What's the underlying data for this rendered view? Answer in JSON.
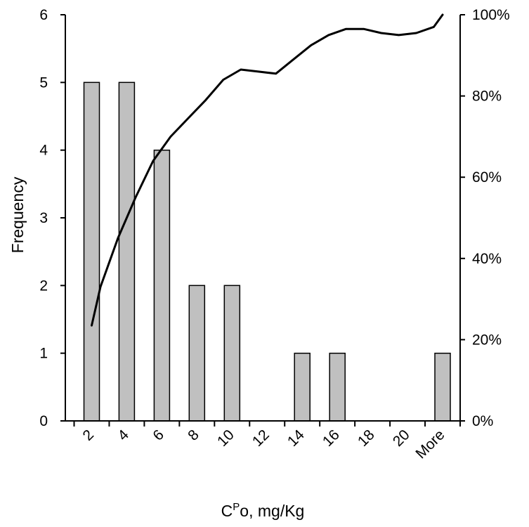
{
  "chart_data": {
    "type": "bar",
    "title": "",
    "xlabel": {
      "base": "C",
      "sup": "P",
      "rest": "o, mg/Kg"
    },
    "ylabel": "Frequency",
    "y2label": "",
    "categories": [
      "2",
      "4",
      "6",
      "8",
      "10",
      "12",
      "14",
      "16",
      "18",
      "20",
      "More"
    ],
    "y_ticks": [
      "0",
      "1",
      "2",
      "3",
      "4",
      "5",
      "6"
    ],
    "y2_ticks": [
      "0%",
      "20%",
      "40%",
      "60%",
      "80%",
      "100%"
    ],
    "ylim": [
      0,
      6
    ],
    "y2lim": [
      0,
      100
    ],
    "grid": false,
    "legend": "none",
    "bar_color": "#c0c0c0",
    "line_color": "#000000",
    "bars": [
      {
        "x": 2.5,
        "value": 5
      },
      {
        "x": 4.5,
        "value": 5
      },
      {
        "x": 6.5,
        "value": 4
      },
      {
        "x": 8.5,
        "value": 2
      },
      {
        "x": 10.5,
        "value": 2
      },
      {
        "x": 14.5,
        "value": 1
      },
      {
        "x": 16.5,
        "value": 1
      },
      {
        "x": 22.5,
        "value": 1
      }
    ],
    "cumulative_line": {
      "x": [
        2.5,
        3,
        4,
        5,
        6,
        7,
        8,
        9,
        10,
        11,
        12,
        13,
        14,
        15,
        16,
        17,
        18,
        19,
        20,
        21,
        22,
        22.5
      ],
      "y_percent": [
        23.5,
        33,
        45,
        55,
        64,
        70,
        74.5,
        79,
        84,
        86.5,
        86,
        85.5,
        89,
        92.5,
        95,
        96.5,
        96.5,
        95.5,
        95,
        95.5,
        97,
        100
      ]
    }
  }
}
